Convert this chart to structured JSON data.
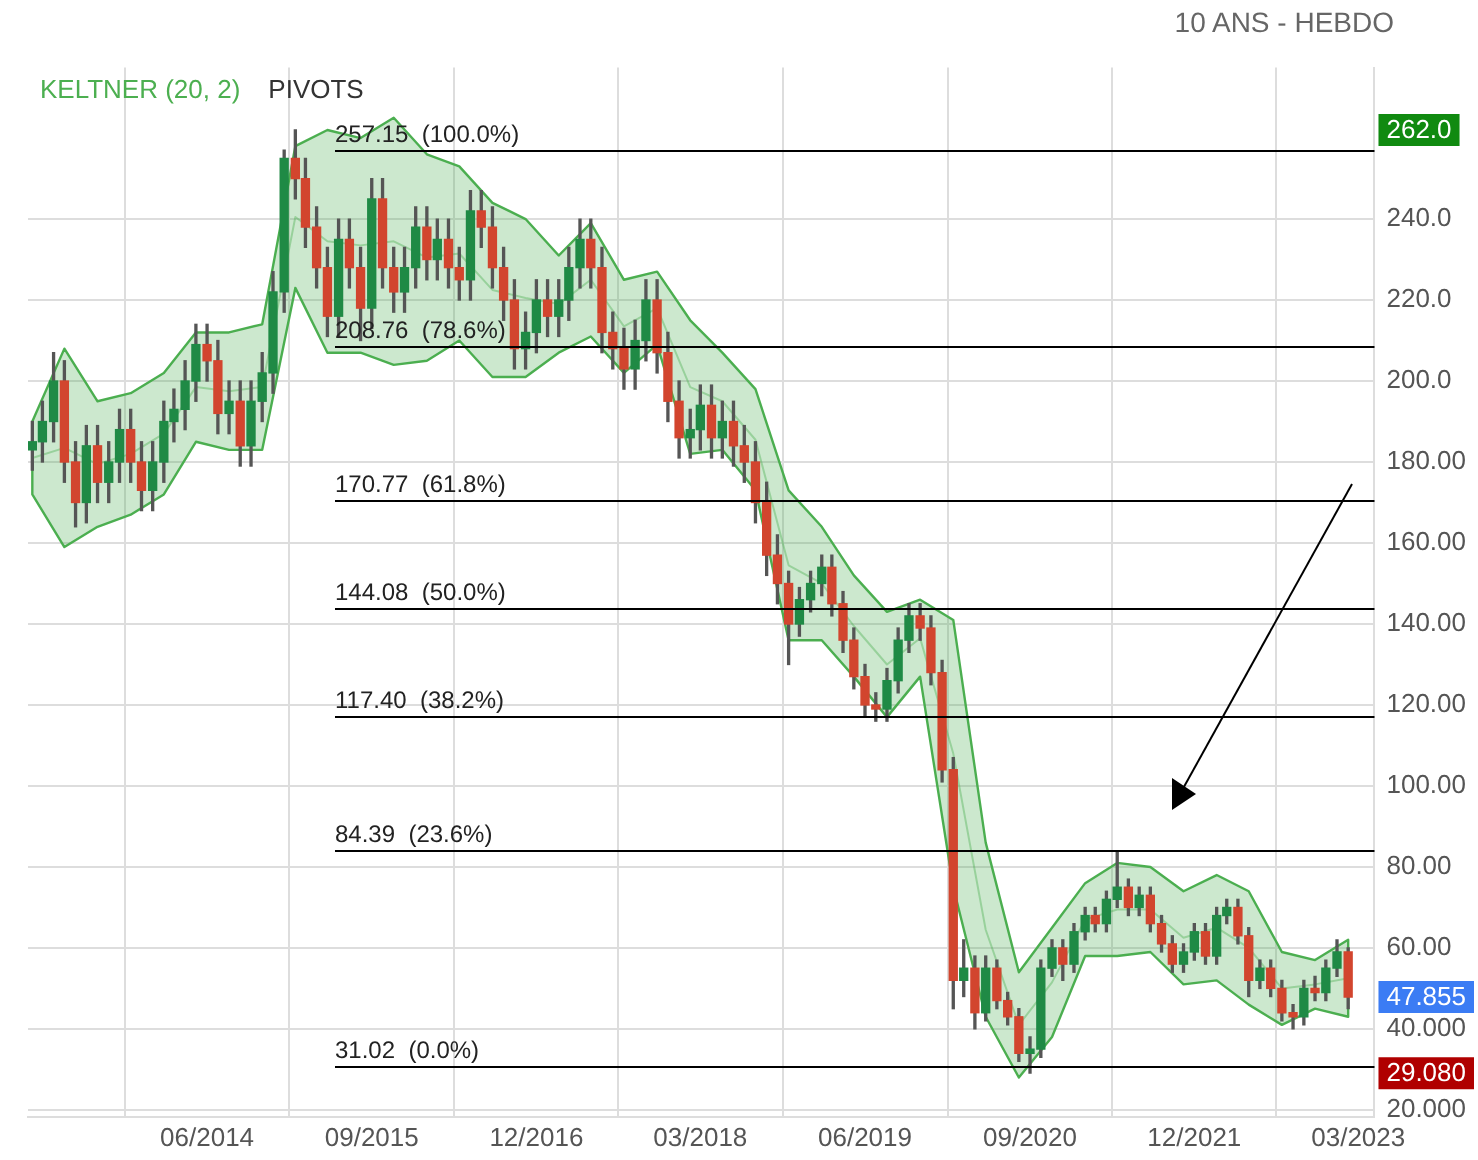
{
  "chart_data": {
    "type": "candlestick",
    "subtitle": "10 ANS - HEBDO",
    "x": [
      "2013-02",
      "2013-03",
      "2013-04",
      "2013-05",
      "2013-06",
      "2013-07",
      "2013-08",
      "2013-09",
      "2013-10",
      "2013-11",
      "2013-12",
      "2014-01",
      "2014-02",
      "2014-03",
      "2014-04",
      "2014-05",
      "2014-06",
      "2014-07",
      "2014-08",
      "2014-09",
      "2014-10",
      "2014-11",
      "2014-12",
      "2015-01",
      "2015-02",
      "2015-03",
      "2015-04",
      "2015-05",
      "2015-06",
      "2015-07",
      "2015-08",
      "2015-09",
      "2015-10",
      "2015-11",
      "2015-12",
      "2016-01",
      "2016-02",
      "2016-03",
      "2016-04",
      "2016-05",
      "2016-06",
      "2016-07",
      "2016-08",
      "2016-09",
      "2016-10",
      "2016-11",
      "2016-12",
      "2017-01",
      "2017-02",
      "2017-03",
      "2017-04",
      "2017-05",
      "2017-06",
      "2017-07",
      "2017-08",
      "2017-09",
      "2017-10",
      "2017-11",
      "2017-12",
      "2018-01",
      "2018-02",
      "2018-03",
      "2018-04",
      "2018-05",
      "2018-06",
      "2018-07",
      "2018-08",
      "2018-09",
      "2018-10",
      "2018-11",
      "2018-12",
      "2019-01",
      "2019-02",
      "2019-03",
      "2019-04",
      "2019-05",
      "2019-06",
      "2019-07",
      "2019-08",
      "2019-09",
      "2019-10",
      "2019-11",
      "2019-12",
      "2020-01",
      "2020-02",
      "2020-03",
      "2020-04",
      "2020-05",
      "2020-06",
      "2020-07",
      "2020-08",
      "2020-09",
      "2020-10",
      "2020-11",
      "2020-12",
      "2021-01",
      "2021-02",
      "2021-03",
      "2021-04",
      "2021-05",
      "2021-06",
      "2021-07",
      "2021-08",
      "2021-09",
      "2021-10",
      "2021-11",
      "2021-12",
      "2022-01",
      "2022-02",
      "2022-03",
      "2022-04",
      "2022-05",
      "2022-06",
      "2022-07",
      "2022-08",
      "2022-09",
      "2022-10",
      "2022-11",
      "2022-12",
      "2023-01",
      "2023-02"
    ],
    "ohlc": [
      [
        183,
        190,
        178,
        185
      ],
      [
        185,
        195,
        180,
        190
      ],
      [
        190,
        207,
        185,
        200
      ],
      [
        200,
        205,
        175,
        180
      ],
      [
        180,
        185,
        164,
        170
      ],
      [
        170,
        189,
        165,
        184
      ],
      [
        184,
        189,
        170,
        175
      ],
      [
        175,
        185,
        170,
        180
      ],
      [
        180,
        193,
        175,
        188
      ],
      [
        188,
        193,
        175,
        180
      ],
      [
        180,
        185,
        168,
        173
      ],
      [
        173,
        185,
        168,
        180
      ],
      [
        180,
        195,
        175,
        190
      ],
      [
        190,
        198,
        185,
        193
      ],
      [
        193,
        205,
        188,
        200
      ],
      [
        200,
        214,
        195,
        209
      ],
      [
        209,
        214,
        200,
        205
      ],
      [
        205,
        210,
        187,
        192
      ],
      [
        192,
        200,
        187,
        195
      ],
      [
        195,
        200,
        179,
        184
      ],
      [
        184,
        200,
        179,
        195
      ],
      [
        195,
        207,
        190,
        202
      ],
      [
        202,
        227,
        197,
        222
      ],
      [
        222,
        257,
        217,
        255
      ],
      [
        255,
        262,
        245,
        250
      ],
      [
        250,
        255,
        233,
        238
      ],
      [
        238,
        243,
        223,
        228
      ],
      [
        228,
        233,
        211,
        216
      ],
      [
        216,
        240,
        211,
        235
      ],
      [
        235,
        240,
        223,
        228
      ],
      [
        228,
        233,
        210,
        218
      ],
      [
        218,
        250,
        213,
        245
      ],
      [
        245,
        250,
        223,
        228
      ],
      [
        228,
        233,
        217,
        222
      ],
      [
        222,
        233,
        217,
        228
      ],
      [
        228,
        243,
        223,
        238
      ],
      [
        238,
        243,
        225,
        230
      ],
      [
        230,
        240,
        225,
        235
      ],
      [
        235,
        240,
        223,
        228
      ],
      [
        228,
        233,
        220,
        225
      ],
      [
        225,
        247,
        220,
        242
      ],
      [
        242,
        247,
        233,
        238
      ],
      [
        238,
        243,
        223,
        228
      ],
      [
        228,
        233,
        215,
        220
      ],
      [
        220,
        225,
        203,
        208
      ],
      [
        208,
        217,
        203,
        212
      ],
      [
        212,
        225,
        207,
        220
      ],
      [
        220,
        225,
        211,
        216
      ],
      [
        216,
        225,
        211,
        220
      ],
      [
        220,
        233,
        215,
        228
      ],
      [
        228,
        240,
        223,
        235
      ],
      [
        235,
        240,
        223,
        228
      ],
      [
        228,
        233,
        207,
        212
      ],
      [
        212,
        217,
        203,
        208
      ],
      [
        208,
        213,
        198,
        203
      ],
      [
        203,
        215,
        198,
        210
      ],
      [
        210,
        225,
        205,
        220
      ],
      [
        220,
        225,
        202,
        207
      ],
      [
        207,
        212,
        190,
        195
      ],
      [
        195,
        200,
        181,
        186
      ],
      [
        186,
        193,
        181,
        188
      ],
      [
        188,
        199,
        183,
        194
      ],
      [
        194,
        199,
        181,
        186
      ],
      [
        186,
        195,
        181,
        190
      ],
      [
        190,
        195,
        179,
        184
      ],
      [
        184,
        189,
        175,
        180
      ],
      [
        180,
        185,
        165,
        170
      ],
      [
        170,
        175,
        152,
        157
      ],
      [
        157,
        162,
        145,
        150
      ],
      [
        150,
        153,
        130,
        140
      ],
      [
        140,
        149,
        137,
        146
      ],
      [
        146,
        153,
        143,
        150
      ],
      [
        150,
        157,
        147,
        154
      ],
      [
        154,
        157,
        142,
        145
      ],
      [
        145,
        148,
        133,
        136
      ],
      [
        136,
        139,
        124,
        127
      ],
      [
        127,
        130,
        117,
        120
      ],
      [
        120,
        123,
        116,
        119
      ],
      [
        119,
        129,
        116,
        126
      ],
      [
        126,
        139,
        123,
        136
      ],
      [
        136,
        145,
        133,
        142
      ],
      [
        142,
        145,
        136,
        139
      ],
      [
        139,
        142,
        125,
        128
      ],
      [
        128,
        131,
        101,
        104
      ],
      [
        104,
        107,
        45,
        52
      ],
      [
        52,
        62,
        48,
        55
      ],
      [
        55,
        58,
        40,
        44
      ],
      [
        44,
        58,
        42,
        55
      ],
      [
        55,
        57,
        45,
        47
      ],
      [
        47,
        49,
        41,
        43
      ],
      [
        43,
        45,
        32,
        34
      ],
      [
        34,
        38,
        29.08,
        35
      ],
      [
        35,
        57,
        33,
        55
      ],
      [
        55,
        62,
        53,
        60
      ],
      [
        60,
        62,
        52,
        56
      ],
      [
        56,
        66,
        54,
        64
      ],
      [
        64,
        70,
        62,
        68
      ],
      [
        68,
        70,
        64,
        66
      ],
      [
        66,
        74,
        64,
        72
      ],
      [
        72,
        84,
        70,
        75
      ],
      [
        75,
        77,
        68,
        70
      ],
      [
        70,
        75,
        68,
        73
      ],
      [
        73,
        75,
        64,
        66
      ],
      [
        66,
        68,
        59,
        61
      ],
      [
        61,
        63,
        54,
        56
      ],
      [
        56,
        61,
        54,
        59
      ],
      [
        59,
        66,
        57,
        64
      ],
      [
        64,
        66,
        56,
        58
      ],
      [
        58,
        70,
        56,
        68
      ],
      [
        68,
        72,
        66,
        70
      ],
      [
        70,
        72,
        61,
        63
      ],
      [
        63,
        65,
        48,
        52
      ],
      [
        52,
        57,
        50,
        55
      ],
      [
        55,
        57,
        48,
        50
      ],
      [
        50,
        52,
        42,
        44
      ],
      [
        44,
        46,
        40,
        43
      ],
      [
        43,
        52,
        41,
        50
      ],
      [
        50,
        53,
        47,
        49
      ],
      [
        49,
        57,
        47,
        55
      ],
      [
        55,
        62,
        53,
        59
      ],
      [
        59,
        60,
        45,
        47.855
      ]
    ],
    "series": [
      {
        "name": "KELTNER (20, 2)",
        "type": "line",
        "color": "#4caf50",
        "x": [
          "2013-02",
          "2013-05",
          "2013-08",
          "2013-11",
          "2014-02",
          "2014-05",
          "2014-08",
          "2014-11",
          "2015-02",
          "2015-05",
          "2015-08",
          "2015-11",
          "2016-02",
          "2016-05",
          "2016-08",
          "2016-11",
          "2017-02",
          "2017-05",
          "2017-08",
          "2017-11",
          "2018-02",
          "2018-05",
          "2018-08",
          "2018-11",
          "2019-02",
          "2019-05",
          "2019-08",
          "2019-11",
          "2020-02",
          "2020-05",
          "2020-08",
          "2020-11",
          "2021-02",
          "2021-05",
          "2021-08",
          "2021-11",
          "2022-02",
          "2022-05",
          "2022-08",
          "2022-11",
          "2023-02"
        ],
        "values": [
          181,
          183.5,
          179.5,
          182,
          187,
          198.5,
          197.5,
          198.5,
          240.5,
          234.5,
          233.5,
          234.5,
          230.5,
          231.5,
          222.5,
          220.5,
          219,
          225,
          213.5,
          218,
          198.5,
          195,
          185.5,
          154.5,
          150,
          139.5,
          130,
          136.5,
          108,
          64.5,
          41,
          51.5,
          67,
          69.5,
          69.5,
          62.5,
          65,
          60,
          50,
          51,
          52.5
        ],
        "upper": [
          190,
          208,
          195,
          197,
          202,
          212,
          212,
          214,
          258,
          262,
          260,
          265,
          256,
          253,
          244,
          240,
          231,
          239,
          225,
          227,
          215,
          207,
          198,
          173,
          164,
          152,
          143,
          146,
          141,
          86,
          54,
          65,
          76,
          81,
          80,
          74,
          78,
          74,
          59,
          57,
          62
        ],
        "lower": [
          172,
          159,
          164,
          167,
          172,
          185,
          183,
          183,
          223,
          207,
          207,
          204,
          205,
          210,
          201,
          201,
          207,
          211,
          202,
          209,
          182,
          183,
          173,
          136,
          136,
          127,
          117,
          127,
          75,
          43,
          28,
          38,
          58,
          58,
          59,
          51,
          52,
          46,
          41,
          45,
          43
        ]
      }
    ],
    "xlim": [
      "2013-01-20",
      "2023-04-15"
    ],
    "xticks": [
      {
        "value": "2014-06",
        "label": "06/2014"
      },
      {
        "value": "2015-09",
        "label": "09/2015"
      },
      {
        "value": "2016-12",
        "label": "12/2016"
      },
      {
        "value": "2018-03",
        "label": "03/2018"
      },
      {
        "value": "2019-06",
        "label": "06/2019"
      },
      {
        "value": "2020-09",
        "label": "09/2020"
      },
      {
        "value": "2021-12",
        "label": "12/2021"
      },
      {
        "value": "2023-03",
        "label": "03/2023"
      }
    ],
    "ylim": [
      18.3,
      277.4
    ],
    "yticks": [
      {
        "value": 20,
        "label": "20.000"
      },
      {
        "value": 40,
        "label": "40.000"
      },
      {
        "value": 60,
        "label": "60.00"
      },
      {
        "value": 80,
        "label": "80.00"
      },
      {
        "value": 100,
        "label": "100.00"
      },
      {
        "value": 120,
        "label": "120.00"
      },
      {
        "value": 140,
        "label": "140.00"
      },
      {
        "value": 160,
        "label": "160.00"
      },
      {
        "value": 180,
        "label": "180.00"
      },
      {
        "value": 200,
        "label": "200.0"
      },
      {
        "value": 220,
        "label": "220.0"
      },
      {
        "value": 240,
        "label": "240.0"
      }
    ],
    "grid": true,
    "legend": "top left",
    "ref_lines": [
      {
        "axis": "y",
        "value": 257.15,
        "label": "257.15  (100.0%)",
        "color": "#000000"
      },
      {
        "axis": "y",
        "value": 208.76,
        "label": "208.76  (78.6%)",
        "color": "#000000"
      },
      {
        "axis": "y",
        "value": 170.77,
        "label": "170.77  (61.8%)",
        "color": "#000000"
      },
      {
        "axis": "y",
        "value": 144.08,
        "label": "144.08  (50.0%)",
        "color": "#000000"
      },
      {
        "axis": "y",
        "value": 117.4,
        "label": "117.40  (38.2%)",
        "color": "#000000"
      },
      {
        "axis": "y",
        "value": 84.39,
        "label": "84.39  (23.6%)",
        "color": "#000000"
      },
      {
        "axis": "y",
        "value": 31.02,
        "label": "31.02  (0.0%)",
        "color": "#000000"
      }
    ],
    "annotations": [
      "PIVOTS",
      "262.0",
      "47.855",
      "29.080"
    ]
  }
}
